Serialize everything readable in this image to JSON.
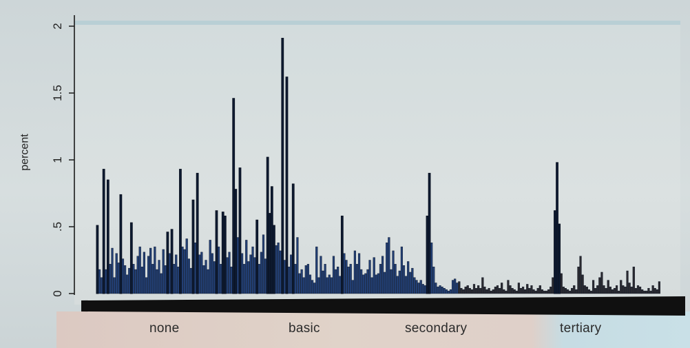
{
  "chart_data": {
    "type": "bar",
    "ylabel": "percent",
    "ylim": [
      0,
      2.05
    ],
    "yticks": [
      {
        "value": 0,
        "label": "0"
      },
      {
        "value": 0.5,
        "label": ".5"
      },
      {
        "value": 1,
        "label": "1"
      },
      {
        "value": 1.5,
        "label": "1.5"
      },
      {
        "value": 2,
        "label": "2"
      }
    ],
    "groups": [
      "none",
      "basic",
      "secondary",
      "tertiary"
    ],
    "grid": false,
    "legend": "none",
    "bar_color": "#1a3a6b",
    "series": [
      {
        "values": [
          0.51,
          0.18,
          0.12,
          0.93,
          0.18,
          0.85,
          0.22,
          0.34,
          0.12,
          0.3,
          0.23,
          0.74,
          0.26,
          0.21,
          0.14,
          0.19,
          0.53,
          0.22,
          0.18,
          0.28,
          0.35,
          0.2,
          0.31,
          0.12,
          0.28,
          0.34,
          0.22,
          0.35,
          0.18,
          0.25,
          0.15,
          0.33,
          0.21,
          0.46,
          0.3,
          0.48,
          0.22,
          0.29,
          0.2,
          0.93,
          0.35,
          0.33,
          0.41,
          0.26,
          0.19,
          0.7,
          0.38,
          0.9,
          0.29,
          0.31,
          0.21,
          0.25,
          0.18,
          0.4,
          0.3,
          0.24,
          0.62,
          0.35,
          0.22,
          0.61,
          0.58,
          0.27,
          0.31,
          0.2,
          1.46,
          0.78,
          0.42,
          0.94,
          0.3,
          0.22,
          0.4,
          0.24,
          0.29,
          0.35,
          0.27,
          0.55,
          0.22,
          0.31,
          0.44,
          0.26,
          1.02,
          0.6,
          0.8,
          0.51,
          0.36,
          0.38,
          0.32,
          1.91,
          0.25,
          1.62,
          0.2,
          0.29,
          0.82,
          0.22,
          0.42,
          0.15,
          0.18,
          0.12,
          0.21,
          0.22,
          0.14,
          0.1,
          0.08,
          0.35,
          0.12,
          0.28,
          0.17,
          0.22,
          0.12,
          0.14,
          0.12,
          0.28,
          0.18,
          0.2,
          0.13,
          0.58,
          0.3,
          0.25,
          0.2,
          0.22,
          0.1,
          0.32,
          0.22,
          0.3,
          0.18,
          0.14,
          0.15,
          0.18,
          0.25,
          0.12,
          0.27,
          0.14,
          0.15,
          0.22,
          0.28,
          0.16,
          0.38,
          0.42,
          0.18,
          0.32,
          0.22,
          0.13,
          0.17,
          0.35,
          0.21,
          0.13,
          0.24,
          0.16,
          0.19,
          0.12,
          0.1,
          0.08,
          0.1,
          0.07,
          0.06,
          0.58,
          0.9,
          0.38,
          0.2,
          0.08,
          0.05,
          0.06,
          0.05,
          0.04,
          0.03,
          0.02,
          0.03,
          0.1,
          0.11,
          0.08,
          0.09,
          0.04,
          0.03,
          0.05,
          0.06,
          0.04,
          0.03,
          0.07,
          0.04,
          0.06,
          0.04,
          0.12,
          0.05,
          0.03,
          0.04,
          0.02,
          0.03,
          0.05,
          0.06,
          0.04,
          0.08,
          0.03,
          0.02,
          0.1,
          0.06,
          0.04,
          0.03,
          0.02,
          0.08,
          0.04,
          0.05,
          0.03,
          0.07,
          0.04,
          0.06,
          0.03,
          0.02,
          0.04,
          0.06,
          0.03,
          0.02,
          0.02,
          0.03,
          0.05,
          0.12,
          0.62,
          0.98,
          0.52,
          0.15,
          0.05,
          0.04,
          0.03,
          0.02,
          0.04,
          0.06,
          0.03,
          0.2,
          0.28,
          0.14,
          0.06,
          0.05,
          0.03,
          0.02,
          0.1,
          0.04,
          0.06,
          0.12,
          0.16,
          0.06,
          0.04,
          0.1,
          0.05,
          0.03,
          0.04,
          0.06,
          0.02,
          0.1,
          0.06,
          0.05,
          0.17,
          0.08,
          0.05,
          0.2,
          0.04,
          0.06,
          0.05,
          0.03,
          0.02,
          0.02,
          0.04,
          0.02,
          0.06,
          0.04,
          0.03,
          0.09
        ]
      }
    ]
  }
}
